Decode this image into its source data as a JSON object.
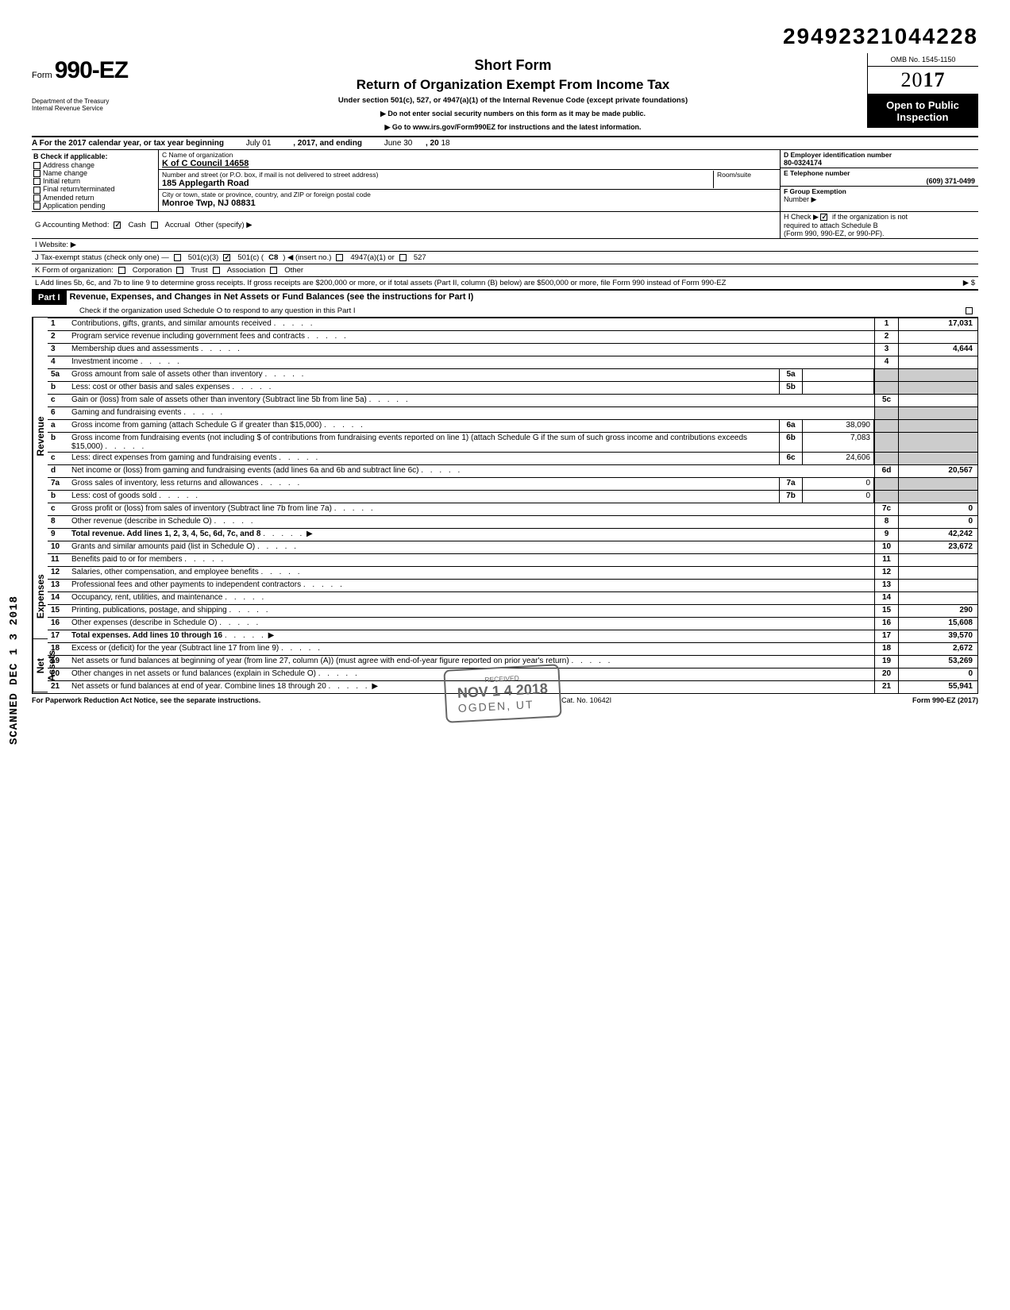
{
  "stamp_number": "29492321044228",
  "form": {
    "prefix": "Form",
    "number": "990-EZ",
    "dept1": "Department of the Treasury",
    "dept2": "Internal Revenue Service"
  },
  "title": {
    "short": "Short Form",
    "main": "Return of Organization Exempt From Income Tax",
    "sub": "Under section 501(c), 527, or 4947(a)(1) of the Internal Revenue Code (except private foundations)",
    "warn": "▶ Do not enter social security numbers on this form as it may be made public.",
    "goto": "▶ Go to www.irs.gov/Form990EZ for instructions and the latest information."
  },
  "right": {
    "omb": "OMB No. 1545-1150",
    "year_prefix": "20",
    "year_bold": "17",
    "public1": "Open to Public",
    "public2": "Inspection"
  },
  "rowA": {
    "label": "A  For the 2017 calendar year, or tax year beginning",
    "begin": "July 01",
    "mid": ", 2017, and ending",
    "end": "June 30",
    "y": ", 20",
    "yv": "18"
  },
  "colB": {
    "header": "B  Check if applicable:",
    "items": [
      "Address change",
      "Name change",
      "Initial return",
      "Final return/terminated",
      "Amended return",
      "Application pending"
    ]
  },
  "colC": {
    "name_label": "C  Name of organization",
    "name": "K of C Council 14658",
    "addr_label": "Number and street (or P.O. box, if mail is not delivered to street address)",
    "room": "Room/suite",
    "addr": "185 Applegarth Road",
    "city_label": "City or town, state or province, country, and ZIP or foreign postal code",
    "city": "Monroe Twp, NJ 08831"
  },
  "colD": {
    "ein_label": "D  Employer identification number",
    "ein": "80-0324174",
    "tel_label": "E  Telephone number",
    "tel": "(609) 371-0499",
    "grp_label": "F  Group Exemption",
    "grp2": "Number ▶"
  },
  "rowG": {
    "label": "G  Accounting Method:",
    "cash": "Cash",
    "accrual": "Accrual",
    "other": "Other (specify) ▶"
  },
  "rowH": {
    "text1": "H  Check ▶",
    "text2": "if the organization is not",
    "text3": "required to attach Schedule B",
    "text4": "(Form 990, 990-EZ, or 990-PF)."
  },
  "rowI": "I   Website: ▶",
  "rowJ": {
    "label": "J  Tax-exempt status (check only one) —",
    "c3": "501(c)(3)",
    "c": "501(c) (",
    "cn": "C8",
    "cx": ") ◀ (insert no.)",
    "a1": "4947(a)(1) or",
    "s527": "527"
  },
  "rowK": {
    "label": "K  Form of organization:",
    "corp": "Corporation",
    "trust": "Trust",
    "assoc": "Association",
    "other": "Other"
  },
  "rowL": "L  Add lines 5b, 6c, and 7b to line 9 to determine gross receipts. If gross receipts are $200,000 or more, or if total assets (Part II, column (B) below) are $500,000 or more, file Form 990 instead of Form 990-EZ",
  "rowL_arrow": "▶   $",
  "part1": {
    "label": "Part I",
    "title": "Revenue, Expenses, and Changes in Net Assets or Fund Balances (see the instructions for Part I)",
    "check": "Check if the organization used Schedule O to respond to any question in this Part I"
  },
  "sections": {
    "revenue": "Revenue",
    "expenses": "Expenses",
    "netassets": "Net Assets"
  },
  "lines": {
    "l1": {
      "n": "1",
      "d": "Contributions, gifts, grants, and similar amounts received",
      "box": "1",
      "v": "17,031"
    },
    "l2": {
      "n": "2",
      "d": "Program service revenue including government fees and contracts",
      "box": "2",
      "v": ""
    },
    "l3": {
      "n": "3",
      "d": "Membership dues and assessments",
      "box": "3",
      "v": "4,644"
    },
    "l4": {
      "n": "4",
      "d": "Investment income",
      "box": "4",
      "v": ""
    },
    "l5a": {
      "n": "5a",
      "d": "Gross amount from sale of assets other than inventory",
      "ib": "5a",
      "iv": ""
    },
    "l5b": {
      "n": "b",
      "d": "Less: cost or other basis and sales expenses",
      "ib": "5b",
      "iv": ""
    },
    "l5c": {
      "n": "c",
      "d": "Gain or (loss) from sale of assets other than inventory (Subtract line 5b from line 5a)",
      "box": "5c",
      "v": ""
    },
    "l6": {
      "n": "6",
      "d": "Gaming and fundraising events"
    },
    "l6a": {
      "n": "a",
      "d": "Gross income from gaming (attach Schedule G if greater than $15,000)",
      "ib": "6a",
      "iv": "38,090"
    },
    "l6b": {
      "n": "b",
      "d": "Gross income from fundraising events (not including  $                of contributions from fundraising events reported on line 1) (attach Schedule G if the sum of such gross income and contributions exceeds $15,000)",
      "ib": "6b",
      "iv": "7,083"
    },
    "l6c": {
      "n": "c",
      "d": "Less: direct expenses from gaming and fundraising events",
      "ib": "6c",
      "iv": "24,606"
    },
    "l6d": {
      "n": "d",
      "d": "Net income or (loss) from gaming and fundraising events (add lines 6a and 6b and subtract line 6c)",
      "box": "6d",
      "v": "20,567"
    },
    "l7a": {
      "n": "7a",
      "d": "Gross sales of inventory, less returns and allowances",
      "ib": "7a",
      "iv": "0"
    },
    "l7b": {
      "n": "b",
      "d": "Less: cost of goods sold",
      "ib": "7b",
      "iv": "0"
    },
    "l7c": {
      "n": "c",
      "d": "Gross profit or (loss) from sales of inventory (Subtract line 7b from line 7a)",
      "box": "7c",
      "v": "0"
    },
    "l8": {
      "n": "8",
      "d": "Other revenue (describe in Schedule O)",
      "box": "8",
      "v": "0"
    },
    "l9": {
      "n": "9",
      "d": "Total revenue. Add lines 1, 2, 3, 4, 5c, 6d, 7c, and 8",
      "box": "9",
      "v": "42,242",
      "bold": true
    },
    "l10": {
      "n": "10",
      "d": "Grants and similar amounts paid (list in Schedule O)",
      "box": "10",
      "v": "23,672"
    },
    "l11": {
      "n": "11",
      "d": "Benefits paid to or for members",
      "box": "11",
      "v": ""
    },
    "l12": {
      "n": "12",
      "d": "Salaries, other compensation, and employee benefits",
      "box": "12",
      "v": ""
    },
    "l13": {
      "n": "13",
      "d": "Professional fees and other payments to independent contractors",
      "box": "13",
      "v": ""
    },
    "l14": {
      "n": "14",
      "d": "Occupancy, rent, utilities, and maintenance",
      "box": "14",
      "v": ""
    },
    "l15": {
      "n": "15",
      "d": "Printing, publications, postage, and shipping",
      "box": "15",
      "v": "290"
    },
    "l16": {
      "n": "16",
      "d": "Other expenses (describe in Schedule O)",
      "box": "16",
      "v": "15,608"
    },
    "l17": {
      "n": "17",
      "d": "Total expenses. Add lines 10 through 16",
      "box": "17",
      "v": "39,570",
      "bold": true
    },
    "l18": {
      "n": "18",
      "d": "Excess or (deficit) for the year (Subtract line 17 from line 9)",
      "box": "18",
      "v": "2,672"
    },
    "l19": {
      "n": "19",
      "d": "Net assets or fund balances at beginning of year (from line 27, column (A)) (must agree with end-of-year figure reported on prior year's return)",
      "box": "19",
      "v": "53,269"
    },
    "l20": {
      "n": "20",
      "d": "Other changes in net assets or fund balances (explain in Schedule O)",
      "box": "20",
      "v": "0"
    },
    "l21": {
      "n": "21",
      "d": "Net assets or fund balances at end of year. Combine lines 18 through 20",
      "box": "21",
      "v": "55,941"
    }
  },
  "footer": {
    "left": "For Paperwork Reduction Act Notice, see the separate instructions.",
    "mid": "Cat. No. 10642I",
    "right": "Form 990-EZ (2017)"
  },
  "scanned": "SCANNED DEC 1 3 2018",
  "received": {
    "date": "NOV 1 4 2018",
    "loc": "OGDEN, UT"
  }
}
